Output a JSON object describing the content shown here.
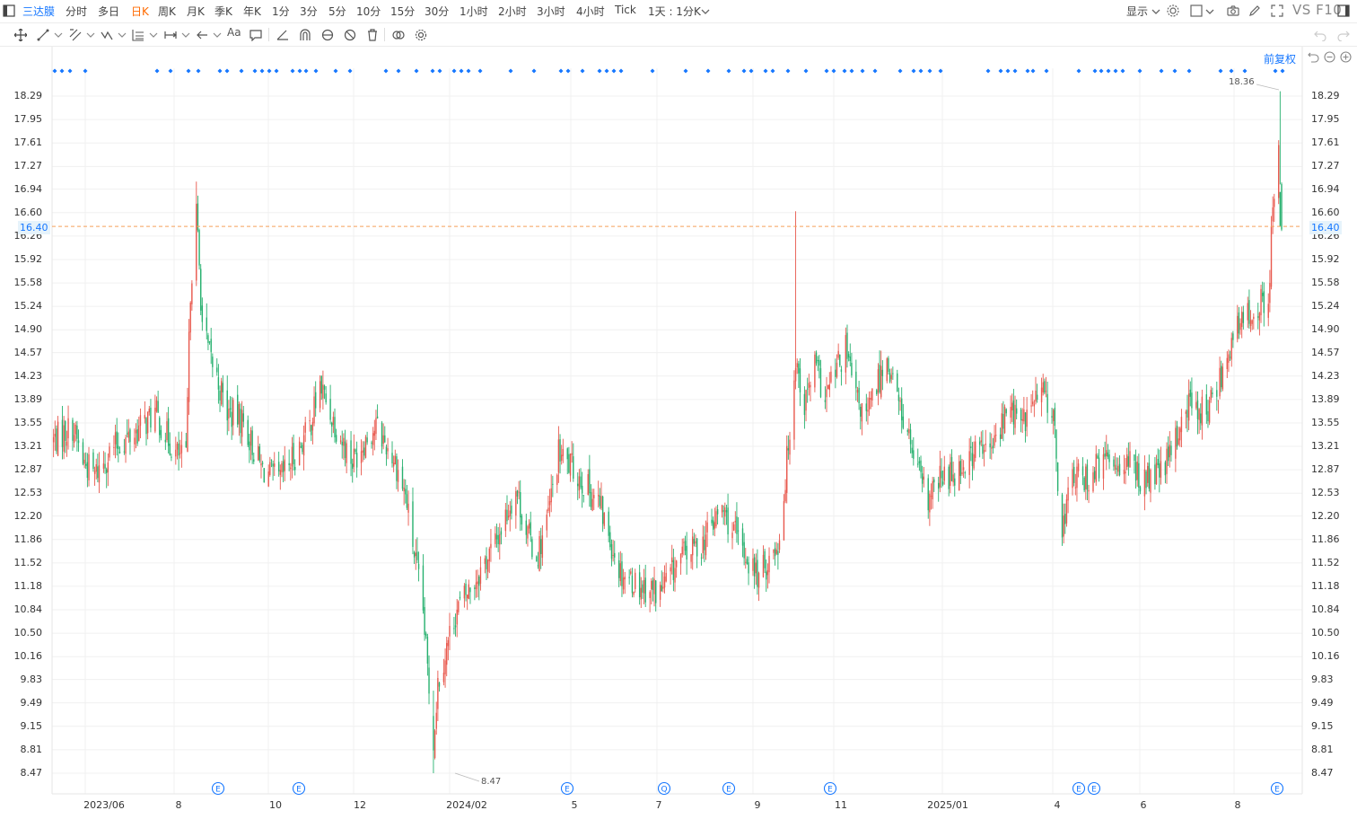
{
  "toolbar": {
    "symbol": "三达膜",
    "periods": [
      "分时",
      "多日",
      "日K",
      "周K",
      "月K",
      "季K",
      "年K",
      "1分",
      "3分",
      "5分",
      "10分",
      "15分",
      "30分",
      "1小时",
      "2小时",
      "3小时",
      "4小时",
      "Tick"
    ],
    "active_period": "日K",
    "interval_label": "1天 : 1分K",
    "display_label": "显示",
    "vs_label": "VS",
    "f10_label": "F10",
    "text_tool_label": "Aa"
  },
  "adjust_label": "前复权",
  "colors": {
    "up": "#e8584d",
    "down": "#26b06e",
    "accent": "#1677ff",
    "price_line": "#f5a05a"
  },
  "chart_data": {
    "type": "candlestick",
    "title": "",
    "xlabel": "",
    "ylabel": "",
    "ylim": [
      8.3,
      18.45
    ],
    "yticks": [
      "18.29",
      "17.95",
      "17.61",
      "17.27",
      "16.94",
      "16.60",
      "16.26",
      "15.92",
      "15.58",
      "15.24",
      "14.90",
      "14.57",
      "14.23",
      "13.89",
      "13.55",
      "13.21",
      "12.87",
      "12.53",
      "12.20",
      "11.86",
      "11.52",
      "11.18",
      "10.84",
      "10.50",
      "10.16",
      "9.83",
      "9.49",
      "9.15",
      "8.81",
      "8.47"
    ],
    "xticks": [
      "2023/06",
      "8",
      "10",
      "12",
      "2024/02",
      "5",
      "7",
      "9",
      "11",
      "2025/01",
      "4",
      "6",
      "8"
    ],
    "current_price": "16.40",
    "high_label": "18.36",
    "low_label": "8.47",
    "event_markers": [
      "E",
      "E",
      "E",
      "Q",
      "E",
      "E",
      "E",
      "E",
      "E"
    ],
    "anchors": [
      [
        "2023-05-23",
        13.3
      ],
      [
        "2023-06-05",
        13.5
      ],
      [
        "2023-06-12",
        13.0
      ],
      [
        "2023-06-20",
        12.8
      ],
      [
        "2023-07-03",
        13.2
      ],
      [
        "2023-07-17",
        13.4
      ],
      [
        "2023-07-31",
        13.7
      ],
      [
        "2023-08-14",
        13.1
      ],
      [
        "2023-08-21",
        13.0
      ],
      [
        "2023-08-24",
        15.5
      ],
      [
        "2023-08-28",
        16.6
      ],
      [
        "2023-09-01",
        15.0
      ],
      [
        "2023-09-05",
        14.6
      ],
      [
        "2023-09-11",
        14.2
      ],
      [
        "2023-09-18",
        13.7
      ],
      [
        "2023-09-28",
        13.6
      ],
      [
        "2023-10-11",
        12.9
      ],
      [
        "2023-10-23",
        12.7
      ],
      [
        "2023-11-06",
        13.2
      ],
      [
        "2023-11-13",
        13.5
      ],
      [
        "2023-11-20",
        14.1
      ],
      [
        "2023-11-27",
        13.7
      ],
      [
        "2023-12-05",
        13.3
      ],
      [
        "2023-12-12",
        13.0
      ],
      [
        "2023-12-20",
        13.3
      ],
      [
        "2023-12-28",
        13.5
      ],
      [
        "2024-01-10",
        13.0
      ],
      [
        "2024-01-17",
        12.5
      ],
      [
        "2024-01-22",
        11.8
      ],
      [
        "2024-01-29",
        10.8
      ],
      [
        "2024-02-05",
        8.9
      ],
      [
        "2024-02-08",
        9.8
      ],
      [
        "2024-02-20",
        10.8
      ],
      [
        "2024-03-05",
        11.3
      ],
      [
        "2024-03-18",
        11.8
      ],
      [
        "2024-04-01",
        12.6
      ],
      [
        "2024-04-08",
        12.0
      ],
      [
        "2024-04-15",
        11.6
      ],
      [
        "2024-04-22",
        12.1
      ],
      [
        "2024-04-30",
        13.1
      ],
      [
        "2024-05-13",
        12.8
      ],
      [
        "2024-05-27",
        12.4
      ],
      [
        "2024-06-11",
        11.4
      ],
      [
        "2024-06-24",
        11.2
      ],
      [
        "2024-07-08",
        11.1
      ],
      [
        "2024-07-22",
        11.6
      ],
      [
        "2024-08-05",
        11.8
      ],
      [
        "2024-08-19",
        12.3
      ],
      [
        "2024-09-02",
        11.7
      ],
      [
        "2024-09-13",
        11.3
      ],
      [
        "2024-09-26",
        11.8
      ],
      [
        "2024-09-30",
        12.5
      ],
      [
        "2024-10-08",
        14.5
      ],
      [
        "2024-10-14",
        13.8
      ],
      [
        "2024-10-21",
        14.4
      ],
      [
        "2024-10-28",
        13.9
      ],
      [
        "2024-11-04",
        14.3
      ],
      [
        "2024-11-11",
        14.6
      ],
      [
        "2024-11-18",
        13.9
      ],
      [
        "2024-11-25",
        13.6
      ],
      [
        "2024-12-02",
        14.1
      ],
      [
        "2024-12-09",
        14.5
      ],
      [
        "2024-12-16",
        13.9
      ],
      [
        "2024-12-23",
        13.4
      ],
      [
        "2024-12-30",
        12.8
      ],
      [
        "2025-01-06",
        12.4
      ],
      [
        "2025-01-13",
        12.7
      ],
      [
        "2025-01-27",
        12.9
      ],
      [
        "2025-02-10",
        13.2
      ],
      [
        "2025-02-17",
        13.1
      ],
      [
        "2025-02-24",
        13.5
      ],
      [
        "2025-03-03",
        13.8
      ],
      [
        "2025-03-10",
        13.5
      ],
      [
        "2025-03-17",
        13.8
      ],
      [
        "2025-03-24",
        14.0
      ],
      [
        "2025-03-31",
        13.8
      ],
      [
        "2025-04-07",
        12.0
      ],
      [
        "2025-04-14",
        12.8
      ],
      [
        "2025-04-21",
        12.7
      ],
      [
        "2025-05-06",
        13.0
      ],
      [
        "2025-05-19",
        13.0
      ],
      [
        "2025-06-03",
        12.7
      ],
      [
        "2025-06-16",
        12.9
      ],
      [
        "2025-06-23",
        13.3
      ],
      [
        "2025-06-30",
        13.8
      ],
      [
        "2025-07-07",
        13.8
      ],
      [
        "2025-07-14",
        13.7
      ],
      [
        "2025-07-21",
        14.0
      ],
      [
        "2025-07-28",
        14.6
      ],
      [
        "2025-08-04",
        14.9
      ],
      [
        "2025-08-11",
        15.1
      ],
      [
        "2025-08-18",
        15.3
      ],
      [
        "2025-08-25",
        15.2
      ],
      [
        "2025-08-27",
        16.4
      ],
      [
        "2025-09-01",
        17.4
      ],
      [
        "2025-09-03",
        16.4
      ]
    ]
  }
}
